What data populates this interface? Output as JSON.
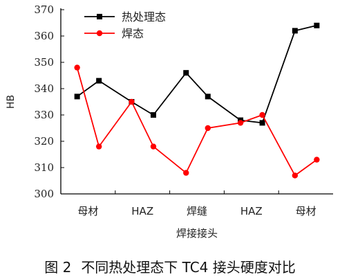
{
  "chart_data": {
    "type": "line",
    "title": "",
    "xlabel": "焊接接头",
    "ylabel": "HB",
    "categories": [
      "母材",
      "HAZ",
      "焊缝",
      "HAZ",
      "母材"
    ],
    "ylim": [
      300,
      370
    ],
    "yticks": [
      300,
      310,
      320,
      330,
      340,
      350,
      360,
      370
    ],
    "grid": false,
    "legend_position": "top",
    "series": [
      {
        "name": "热处理态",
        "color": "#000000",
        "marker": "square",
        "x": [
          0.8,
          1.2,
          1.8,
          2.2,
          2.8,
          3.2,
          3.8,
          4.2,
          4.8,
          5.2
        ],
        "values": [
          337,
          343,
          335,
          330,
          346,
          337,
          328,
          327,
          362,
          364
        ]
      },
      {
        "name": "焊态",
        "color": "#ff0000",
        "marker": "circle",
        "x": [
          0.8,
          1.2,
          1.8,
          2.2,
          2.8,
          3.2,
          3.8,
          4.2,
          4.8,
          5.2
        ],
        "values": [
          348,
          318,
          335,
          318,
          308,
          325,
          327,
          330,
          307,
          313
        ]
      }
    ]
  },
  "caption": {
    "figure_no": "图 2",
    "text": "不同热处理态下 TC4 接头硬度对比"
  }
}
